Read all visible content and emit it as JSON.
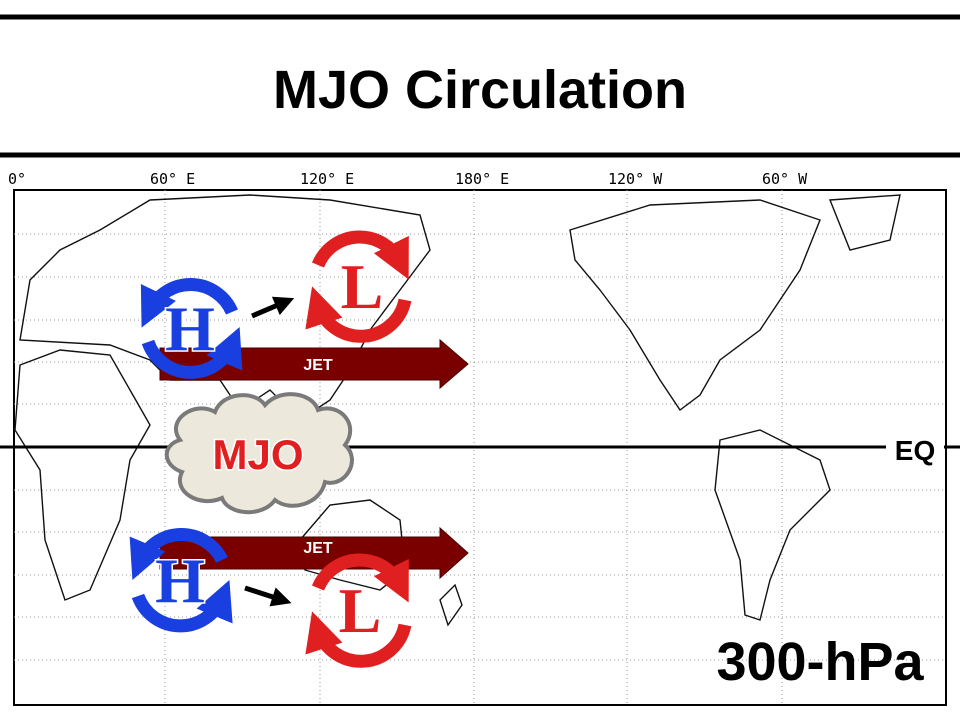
{
  "header": {
    "title": "MJO Circulation"
  },
  "map": {
    "longitude_labels": [
      "0°",
      "60° E",
      "120° E",
      "180° E",
      "120° W",
      "60° W"
    ],
    "equator_label": "EQ",
    "level_label": "300-hPa",
    "features": {
      "north_high": "H",
      "north_low": "L",
      "north_jet": "JET",
      "mjo": "MJO",
      "south_high": "H",
      "south_low": "L",
      "south_jet": "JET"
    }
  }
}
